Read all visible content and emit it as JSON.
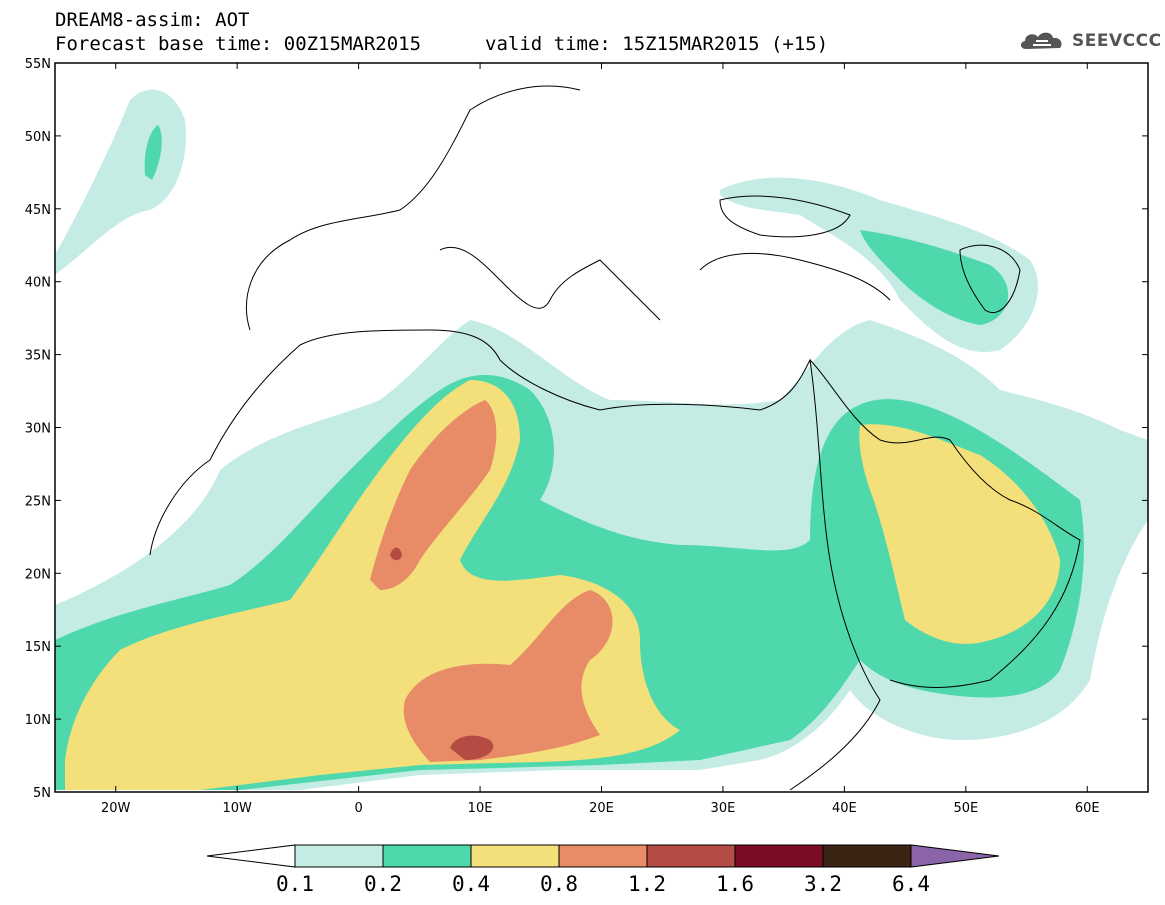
{
  "header": {
    "line1": "DREAM8-assim: AOT",
    "line2": "Forecast base time: 00Z15MAR2015",
    "valid": "valid time: 15Z15MAR2015 (+15)"
  },
  "logo": {
    "icon": "cloud-icon",
    "text": "SEEVCCC"
  },
  "map": {
    "lon_range": [
      -25,
      65
    ],
    "lat_range": [
      5,
      55
    ],
    "lat_labels": [
      "5N",
      "10N",
      "15N",
      "20N",
      "25N",
      "30N",
      "35N",
      "40N",
      "45N",
      "50N",
      "55N"
    ],
    "lon_labels": [
      "20W",
      "10W",
      "0",
      "10E",
      "20E",
      "30E",
      "40E",
      "50E",
      "60E"
    ]
  },
  "colorbar": {
    "labels": [
      "0.1",
      "0.2",
      "0.4",
      "0.8",
      "1.2",
      "1.6",
      "3.2",
      "6.4"
    ],
    "colors": {
      "below": "#ffffff",
      "c1": "#c4ece4",
      "c2": "#4ed8ac",
      "c3": "#f4e07a",
      "c4": "#e88c68",
      "c5": "#b44c44",
      "c6": "#7a0c26",
      "c7": "#3c2414",
      "above": "#8c64a8"
    }
  }
}
